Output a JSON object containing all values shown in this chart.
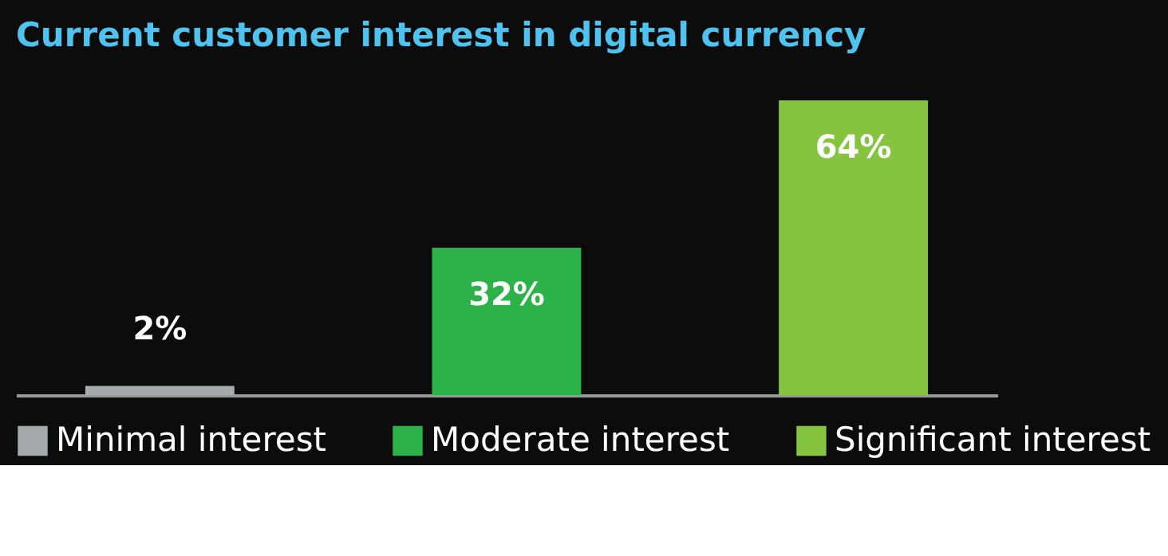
{
  "chart_data": {
    "type": "bar",
    "title": "Current customer interest in digital currency",
    "categories": [
      null,
      null,
      null
    ],
    "series": [
      {
        "name": "Minimal interest",
        "color": "#a7a9ac",
        "values": [
          2,
          null,
          null
        ],
        "value_labels": [
          "2%",
          null,
          null
        ]
      },
      {
        "name": "Moderate interest",
        "color": "#2db24a",
        "values": [
          null,
          32,
          null
        ],
        "value_labels": [
          null,
          "32%",
          null
        ]
      },
      {
        "name": "Significant interest",
        "color": "#86c440",
        "values": [
          null,
          null,
          64
        ],
        "value_labels": [
          null,
          null,
          "64%"
        ]
      }
    ],
    "stacked": true,
    "legend": "bottom",
    "grid": false,
    "tick_labels": false
  }
}
